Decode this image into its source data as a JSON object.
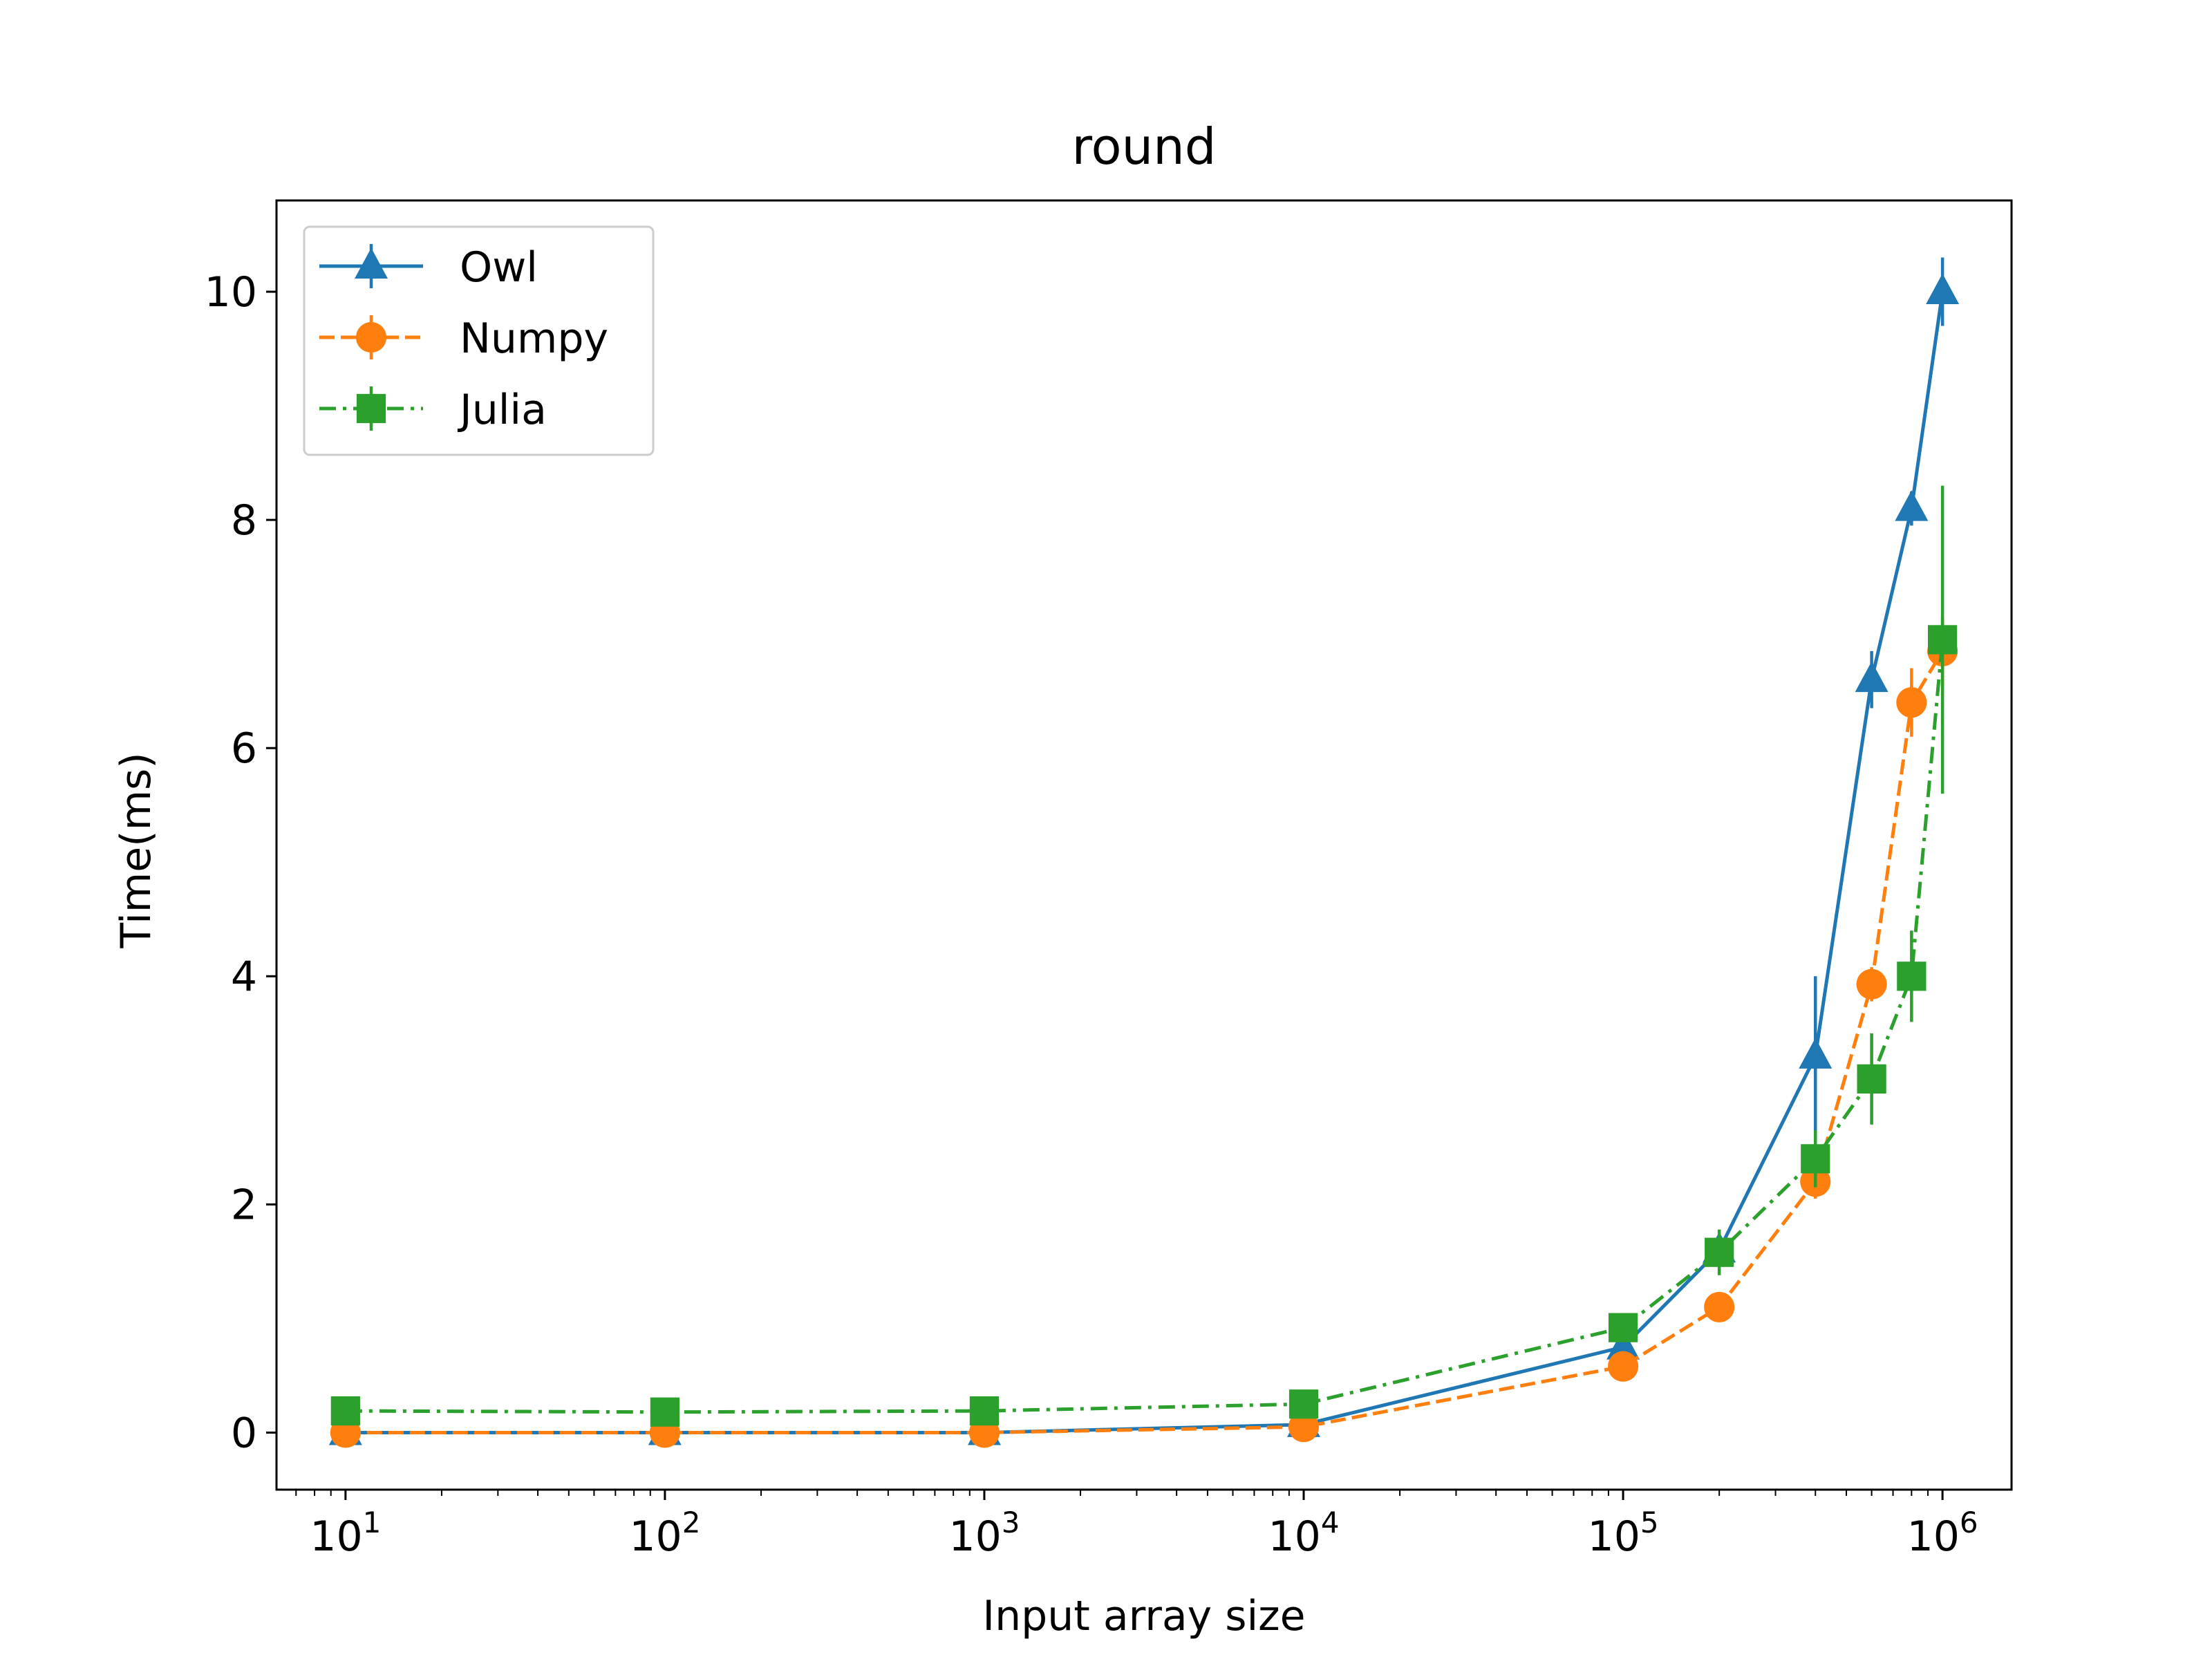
{
  "chart_data": {
    "type": "line",
    "title": "round",
    "xlabel": "Input array size",
    "ylabel": "Time(ms)",
    "xscale": "log",
    "xlim": [
      6.08,
      1645000
    ],
    "ylim": [
      -0.5,
      10.8
    ],
    "x": [
      10,
      100,
      1000,
      10000,
      100000,
      200000,
      400000,
      600000,
      800000,
      1000000
    ],
    "x_ticks": [
      {
        "value": 10,
        "base": "10",
        "exp": "1"
      },
      {
        "value": 100,
        "base": "10",
        "exp": "2"
      },
      {
        "value": 1000,
        "base": "10",
        "exp": "3"
      },
      {
        "value": 10000,
        "base": "10",
        "exp": "4"
      },
      {
        "value": 100000,
        "base": "10",
        "exp": "5"
      },
      {
        "value": 1000000,
        "base": "10",
        "exp": "6"
      }
    ],
    "y_ticks": [
      {
        "value": 0,
        "label": "0"
      },
      {
        "value": 2,
        "label": "2"
      },
      {
        "value": 4,
        "label": "4"
      },
      {
        "value": 6,
        "label": "6"
      },
      {
        "value": 8,
        "label": "8"
      },
      {
        "value": 10,
        "label": "10"
      }
    ],
    "legend_position": "top-left",
    "series": [
      {
        "name": "Owl",
        "color": "#1f77b4",
        "marker": "triangle",
        "linestyle": "solid",
        "values": [
          0.0,
          0.0,
          0.0,
          0.07,
          0.75,
          1.6,
          3.3,
          6.6,
          8.1,
          10.0
        ],
        "errors": [
          0.0,
          0.0,
          0.0,
          0.02,
          0.05,
          0.1,
          0.7,
          0.25,
          0.15,
          0.3
        ]
      },
      {
        "name": "Numpy",
        "color": "#ff7f0e",
        "marker": "circle",
        "linestyle": "dashed",
        "values": [
          0.0,
          0.0,
          0.0,
          0.05,
          0.58,
          1.1,
          2.2,
          3.93,
          6.4,
          6.85
        ],
        "errors": [
          0.0,
          0.0,
          0.0,
          0.02,
          0.05,
          0.05,
          0.15,
          0.15,
          0.3,
          0.3
        ]
      },
      {
        "name": "Julia",
        "color": "#2ca02c",
        "marker": "square",
        "linestyle": "dashdot",
        "values": [
          0.19,
          0.18,
          0.19,
          0.25,
          0.92,
          1.58,
          2.4,
          3.1,
          4.0,
          6.95
        ],
        "errors": [
          0.03,
          0.03,
          0.03,
          0.05,
          0.1,
          0.2,
          0.25,
          0.4,
          0.4,
          1.35
        ]
      }
    ]
  }
}
